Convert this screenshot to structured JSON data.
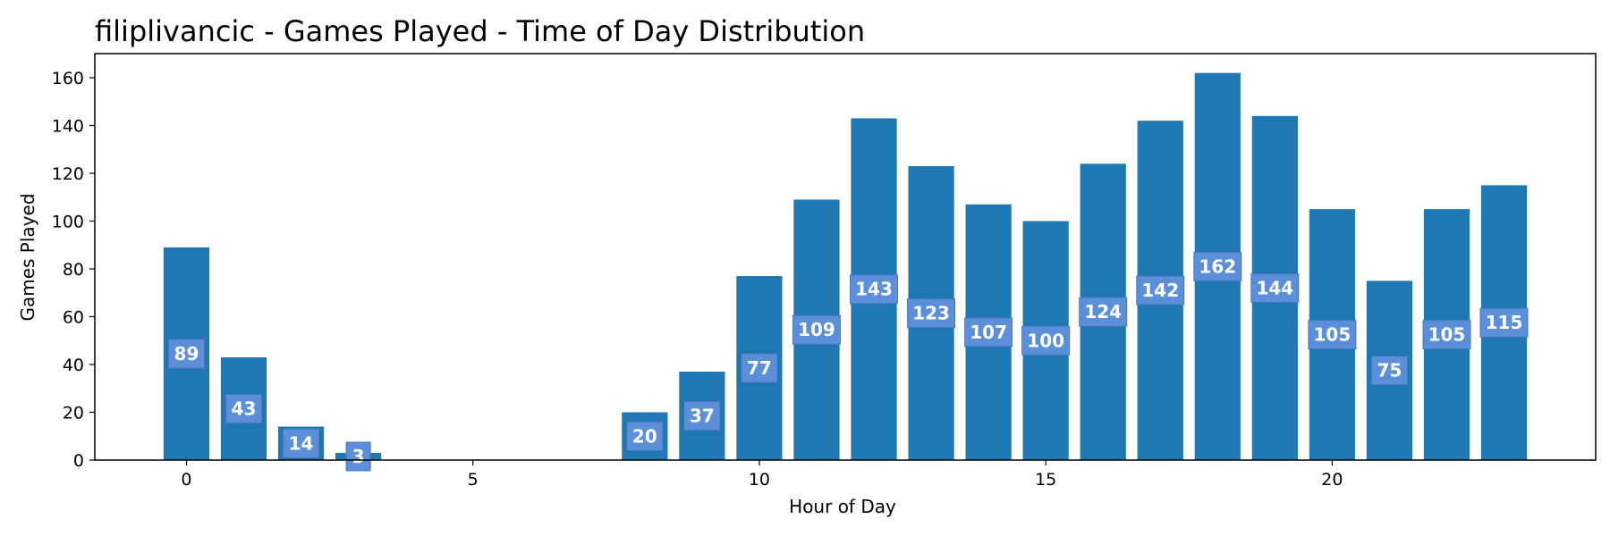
{
  "chart_data": {
    "type": "bar",
    "title": "filiplivancic - Games Played - Time of Day Distribution",
    "xlabel": "Hour of Day",
    "ylabel": "Games Played",
    "x": [
      0,
      1,
      2,
      3,
      4,
      5,
      6,
      7,
      8,
      9,
      10,
      11,
      12,
      13,
      14,
      15,
      16,
      17,
      18,
      19,
      20,
      21,
      22,
      23
    ],
    "values": [
      89,
      43,
      14,
      3,
      0,
      0,
      0,
      0,
      20,
      37,
      77,
      109,
      143,
      123,
      107,
      100,
      124,
      142,
      162,
      144,
      105,
      75,
      105,
      115
    ],
    "xticks": [
      0,
      5,
      10,
      15,
      20
    ],
    "yticks": [
      0,
      20,
      40,
      60,
      80,
      100,
      120,
      140,
      160
    ],
    "xlim": [
      -1.6,
      24.6
    ],
    "ylim": [
      0,
      170.1
    ],
    "grid": false,
    "legend": "none",
    "colors": {
      "bar": "#1f77b4",
      "label_box": "#5b8fd9",
      "label_text": "#ffffff",
      "axis": "#000000"
    }
  }
}
